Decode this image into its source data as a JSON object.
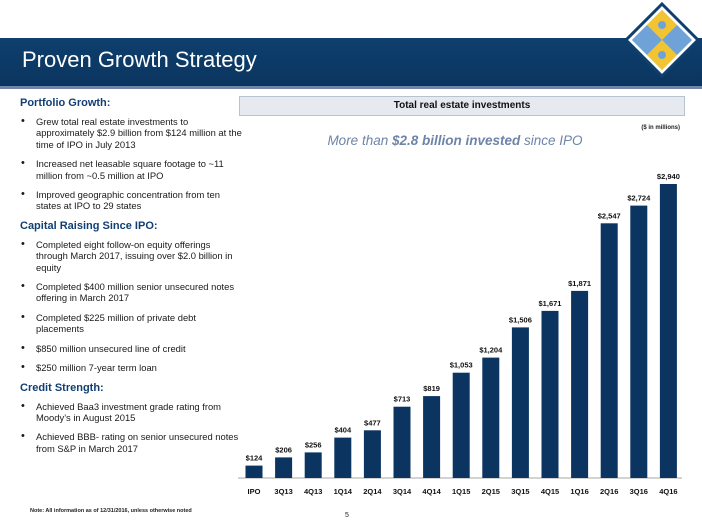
{
  "header": {
    "title": "Proven Growth Strategy"
  },
  "left": {
    "sections": [
      {
        "heading": "Portfolio Growth:",
        "bullets": [
          "Grew total real estate investments to approximately $2.9 billion from $124 million at the time of IPO in July 2013",
          "Increased net leasable square footage to ~11 million from ~0.5 million at IPO",
          "Improved geographic concentration from ten states at IPO to 29 states"
        ]
      },
      {
        "heading": "Capital Raising Since IPO:",
        "bullets": [
          "Completed eight follow-on equity offerings through March 2017, issuing over $2.0 billion in equity",
          "Completed $400 million senior unsecured notes offering in March 2017",
          "Completed $225 million of private debt placements",
          "$850 million unsecured line of credit",
          "$250 million 7-year term loan"
        ]
      },
      {
        "heading": "Credit Strength:",
        "bullets": [
          "Achieved Baa3 investment grade rating from Moody’s in August 2015",
          "Achieved BBB- rating on senior unsecured notes from S&P in March 2017"
        ]
      }
    ]
  },
  "chart_banner": "Total real estate investments",
  "chart_units": "($ in millions)",
  "subtitle": {
    "pre": "More than ",
    "bold": "$2.8 billion invested",
    "post": " since IPO"
  },
  "footnote": "Note: All information as of 12/31/2016, unless otherwise noted",
  "page_number": "5",
  "colors": {
    "bar": "#0b3560",
    "header": "#0e3f6e",
    "accent": "#6d84a8"
  },
  "logo": {
    "icon": "puzzle-diamond-logo",
    "colors": [
      "#f3c432",
      "#6fa3d8",
      "#a9c8ea",
      "#0e3f6e"
    ]
  },
  "chart_data": {
    "type": "bar",
    "categories": [
      "IPO",
      "3Q13",
      "4Q13",
      "1Q14",
      "2Q14",
      "3Q14",
      "4Q14",
      "1Q15",
      "2Q15",
      "3Q15",
      "4Q15",
      "1Q16",
      "2Q16",
      "3Q16",
      "4Q16"
    ],
    "values": [
      124,
      206,
      256,
      404,
      477,
      713,
      819,
      1053,
      1204,
      1506,
      1671,
      1871,
      2547,
      2724,
      2940
    ],
    "value_labels": [
      "$124",
      "$206",
      "$256",
      "$404",
      "$477",
      "$713",
      "$819",
      "$1,053",
      "$1,204",
      "$1,506",
      "$1,671",
      "$1,871",
      "$2,547",
      "$2,724",
      "$2,940"
    ],
    "title": "Total real estate investments",
    "ylabel": "",
    "xlabel": "",
    "ylim": [
      0,
      3000
    ],
    "grid": false,
    "legend": "none"
  }
}
